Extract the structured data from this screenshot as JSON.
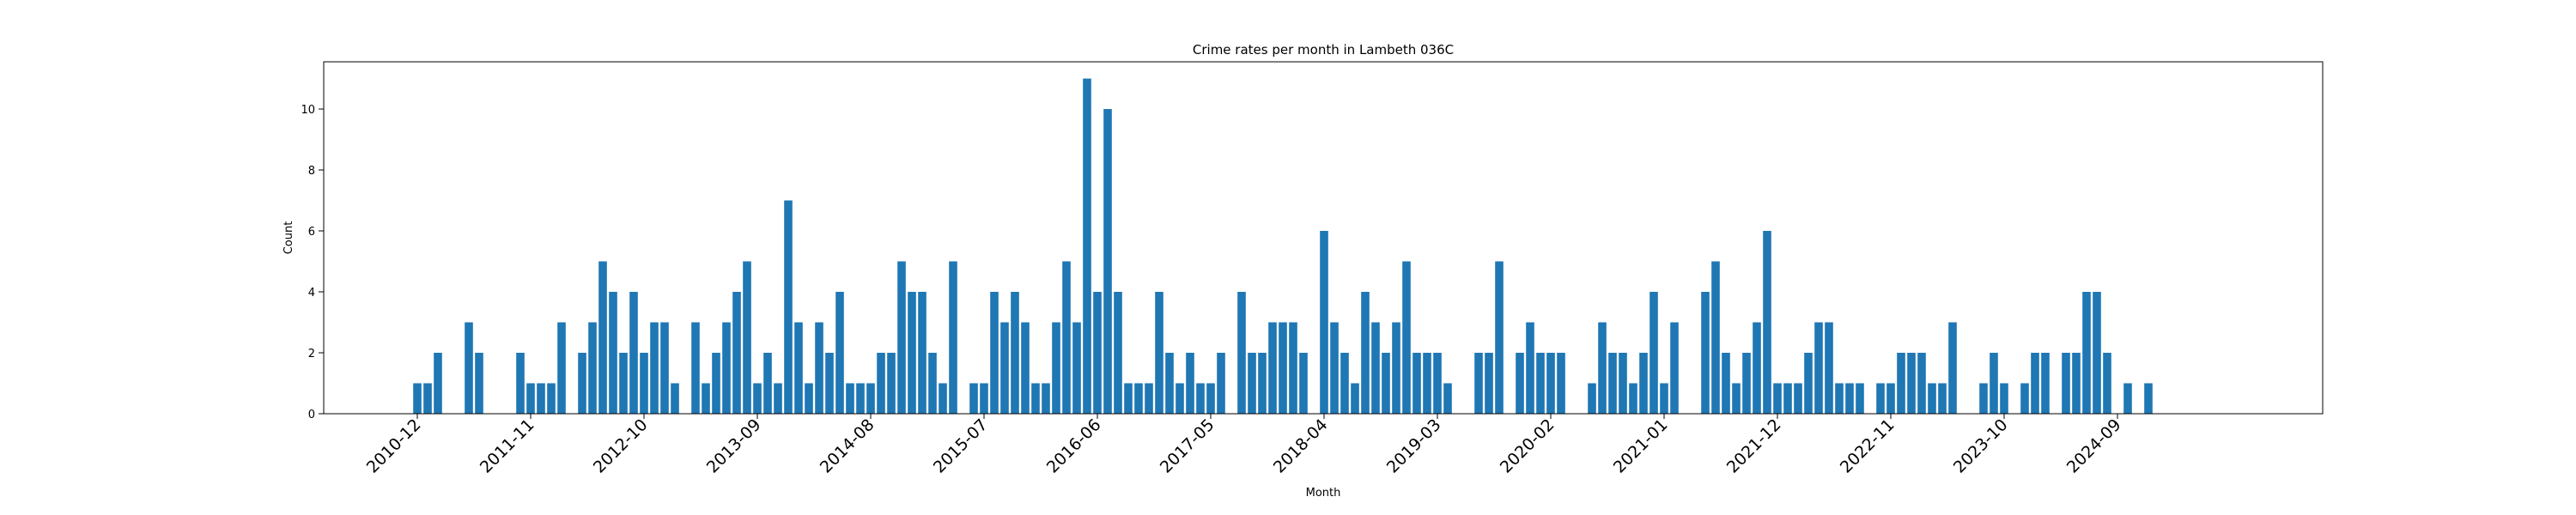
{
  "chart_data": {
    "type": "bar",
    "title": "Crime rates per month in Lambeth 036C",
    "xlabel": "Month",
    "ylabel": "Count",
    "ylim": [
      0,
      11.55
    ],
    "yticks": [
      0,
      2,
      4,
      6,
      8,
      10
    ],
    "bar_color": "#1f77b4",
    "x_start": "2010-12",
    "x_tick_labels": [
      "2010-12",
      "2011-11",
      "2012-10",
      "2013-09",
      "2014-08",
      "2015-07",
      "2016-06",
      "2017-05",
      "2018-04",
      "2019-03",
      "2020-02",
      "2021-01",
      "2021-12",
      "2022-11",
      "2023-10",
      "2024-09"
    ],
    "values": [
      1,
      1,
      2,
      0,
      0,
      3,
      2,
      0,
      0,
      0,
      2,
      1,
      1,
      1,
      3,
      0,
      2,
      3,
      5,
      4,
      2,
      4,
      2,
      3,
      3,
      1,
      0,
      3,
      1,
      2,
      3,
      4,
      5,
      1,
      2,
      1,
      7,
      3,
      1,
      3,
      2,
      4,
      1,
      1,
      1,
      2,
      2,
      5,
      4,
      4,
      2,
      1,
      5,
      0,
      1,
      1,
      4,
      3,
      4,
      3,
      1,
      1,
      3,
      5,
      3,
      11,
      4,
      10,
      4,
      1,
      1,
      1,
      4,
      2,
      1,
      2,
      1,
      1,
      2,
      0,
      4,
      2,
      2,
      3,
      3,
      3,
      2,
      0,
      6,
      3,
      2,
      1,
      4,
      3,
      2,
      3,
      5,
      2,
      2,
      2,
      1,
      0,
      0,
      2,
      2,
      5,
      0,
      2,
      3,
      2,
      2,
      2,
      0,
      0,
      1,
      3,
      2,
      2,
      1,
      2,
      4,
      1,
      3,
      0,
      0,
      4,
      5,
      2,
      1,
      2,
      3,
      6,
      1,
      1,
      1,
      2,
      3,
      3,
      1,
      1,
      1,
      0,
      1,
      1,
      2,
      2,
      2,
      1,
      1,
      3,
      0,
      0,
      1,
      2,
      1,
      0,
      1,
      2,
      2,
      0,
      2,
      2,
      4,
      4,
      2,
      0,
      1,
      0,
      1
    ]
  }
}
